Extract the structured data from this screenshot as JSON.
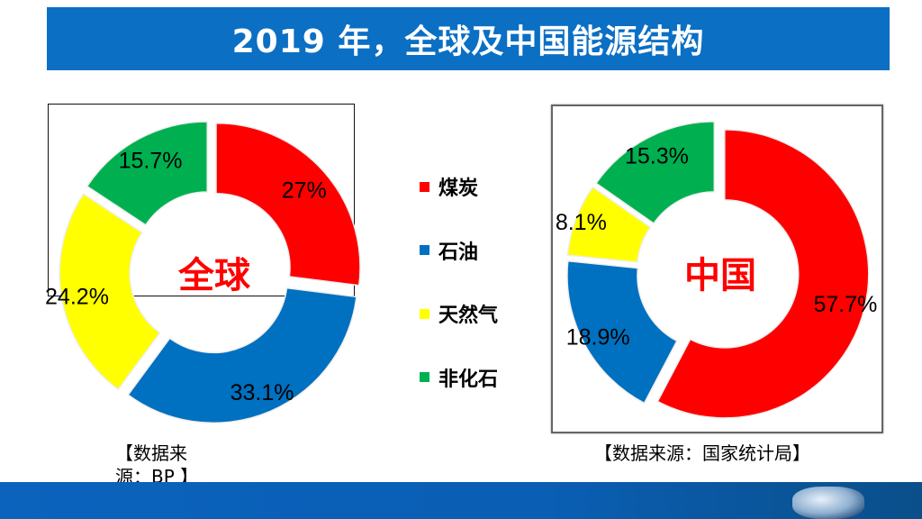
{
  "title": "2019 年，全球及中国能源结构",
  "legend": [
    {
      "label": "煤炭",
      "color": "#ff0000"
    },
    {
      "label": "石油",
      "color": "#0070c0"
    },
    {
      "label": "天然气",
      "color": "#ffff00"
    },
    {
      "label": "非化石",
      "color": "#00b050"
    }
  ],
  "chart_data": [
    {
      "type": "pie",
      "style": "exploded-donut",
      "center_label": "全球",
      "categories": [
        "煤炭",
        "石油",
        "天然气",
        "非化石"
      ],
      "values": [
        27,
        33.1,
        24.2,
        15.7
      ],
      "data_labels": [
        "27%",
        "33.1%",
        "24.2%",
        "15.7%"
      ],
      "colors": [
        "#ff0000",
        "#0070c0",
        "#ffff00",
        "#00b050"
      ],
      "source": "【数据来源：BP 】"
    },
    {
      "type": "pie",
      "style": "exploded-donut",
      "center_label": "中国",
      "categories": [
        "煤炭",
        "石油",
        "天然气",
        "非化石"
      ],
      "values": [
        57.7,
        18.9,
        8.1,
        15.3
      ],
      "data_labels": [
        "57.7%",
        "18.9%",
        "8.1%",
        "15.3%"
      ],
      "colors": [
        "#ff0000",
        "#0070c0",
        "#ffff00",
        "#00b050"
      ],
      "source": "【数据来源：国家统计局】"
    }
  ]
}
